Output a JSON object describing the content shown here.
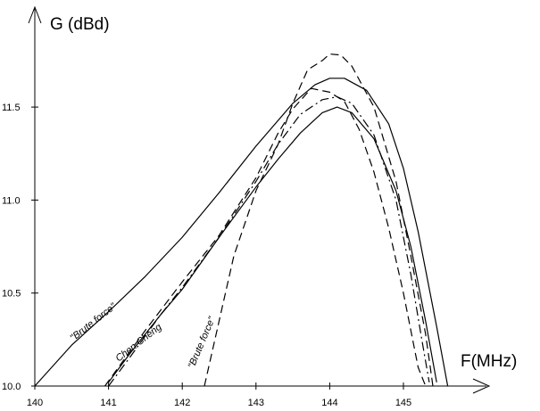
{
  "chart_data": {
    "type": "line",
    "title": "",
    "xlabel": "F(MHz)",
    "ylabel": "G (dBd)",
    "xlim": [
      140,
      146
    ],
    "ylim": [
      10.0,
      11.8
    ],
    "x_ticks": [
      140,
      141,
      142,
      143,
      144,
      145
    ],
    "y_ticks": [
      10.0,
      10.5,
      11.0,
      11.5
    ],
    "x_tick_labels": [
      "140",
      "141",
      "142",
      "143",
      "144",
      "145"
    ],
    "y_tick_labels": [
      "10.0",
      "10.5",
      "11.0",
      "11.5"
    ],
    "grid": false,
    "legend": "none",
    "series": [
      {
        "style": "solid",
        "x": [
          140.0,
          140.5,
          141.0,
          141.5,
          142.0,
          142.5,
          143.0,
          143.5,
          143.8,
          144.0,
          144.2,
          144.5,
          144.8,
          145.0,
          145.2,
          145.45,
          145.6
        ],
        "y": [
          10.0,
          10.22,
          10.4,
          10.59,
          10.8,
          11.04,
          11.29,
          11.52,
          11.62,
          11.655,
          11.655,
          11.59,
          11.41,
          11.17,
          10.83,
          10.32,
          10.0
        ]
      },
      {
        "style": "solid",
        "x": [
          141.0,
          141.3,
          141.7,
          142.0,
          142.5,
          143.0,
          143.3,
          143.6,
          143.9,
          144.1,
          144.3,
          144.6,
          144.9,
          145.1,
          145.3,
          145.45
        ],
        "y": [
          10.02,
          10.18,
          10.38,
          10.52,
          10.8,
          11.07,
          11.22,
          11.36,
          11.47,
          11.5,
          11.47,
          11.33,
          11.05,
          10.75,
          10.35,
          10.02
        ]
      },
      {
        "style": "dash-dot",
        "x": [
          141.0,
          141.3,
          141.7,
          142.0,
          142.5,
          143.0,
          143.3,
          143.6,
          143.9,
          144.1,
          144.3,
          144.6,
          144.9,
          145.1,
          145.25,
          145.35
        ],
        "y": [
          10.0,
          10.16,
          10.38,
          10.53,
          10.8,
          11.1,
          11.3,
          11.46,
          11.54,
          11.555,
          11.52,
          11.35,
          11.0,
          10.6,
          10.25,
          10.02
        ]
      },
      {
        "style": "dashed",
        "x": [
          140.95,
          141.5,
          142.0,
          142.5,
          143.0,
          143.3,
          143.5,
          143.75,
          144.0,
          144.2,
          144.4,
          144.6,
          144.8,
          145.0,
          145.2,
          145.3
        ],
        "y": [
          10.0,
          10.3,
          10.56,
          10.81,
          11.12,
          11.36,
          11.49,
          11.6,
          11.58,
          11.53,
          11.38,
          11.15,
          10.85,
          10.5,
          10.1,
          10.0
        ]
      },
      {
        "style": "dashed",
        "x": [
          142.3,
          142.5,
          142.7,
          143.0,
          143.3,
          143.5,
          143.7,
          143.9,
          144.0,
          144.15,
          144.3,
          144.6,
          144.9,
          145.1,
          145.3,
          145.4
        ],
        "y": [
          10.0,
          10.35,
          10.7,
          11.05,
          11.3,
          11.52,
          11.7,
          11.75,
          11.785,
          11.78,
          11.72,
          11.5,
          11.1,
          10.7,
          10.28,
          10.0
        ]
      }
    ],
    "annotations": [
      "\"Brute force\"",
      "Chen Cheng",
      "\"Brute force\""
    ]
  }
}
